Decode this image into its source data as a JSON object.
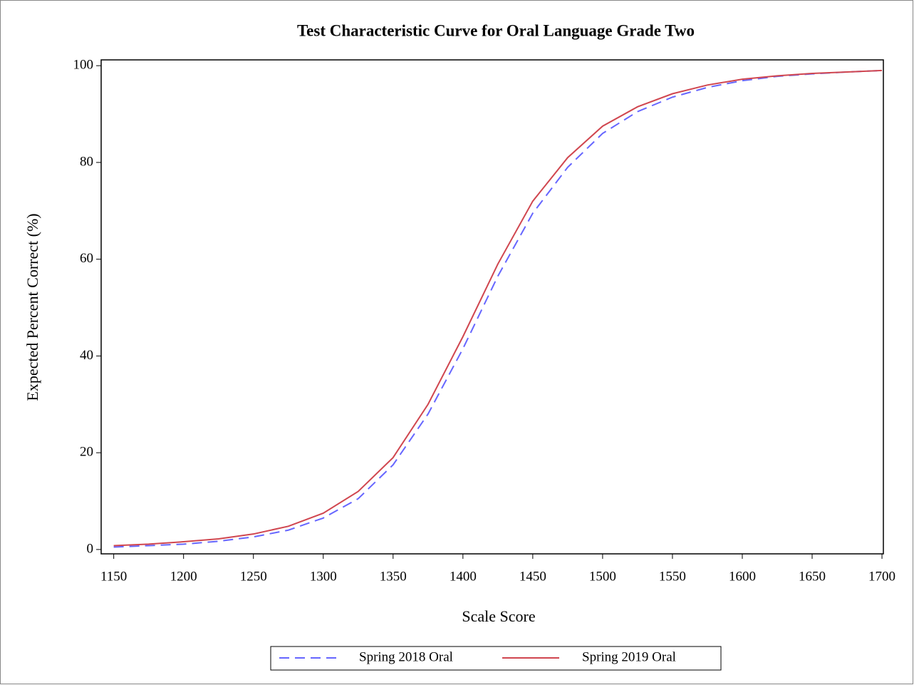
{
  "chart_data": {
    "type": "line",
    "title": "Test Characteristic Curve for Oral Language Grade Two",
    "x_label": "Scale Score",
    "y_label": "Expected Percent Correct (%)",
    "x": [
      1150,
      1175,
      1200,
      1225,
      1250,
      1275,
      1300,
      1325,
      1350,
      1375,
      1400,
      1425,
      1450,
      1475,
      1500,
      1525,
      1550,
      1575,
      1600,
      1625,
      1650,
      1675,
      1700
    ],
    "series": [
      {
        "name": "Spring 2018 Oral",
        "color": "#6666ff",
        "dashed": true,
        "values": [
          0.5,
          0.8,
          1.1,
          1.7,
          2.6,
          4,
          6.5,
          10.5,
          17.5,
          28,
          41.5,
          56.5,
          69.5,
          79,
          86,
          90.5,
          93.5,
          95.5,
          96.9,
          97.8,
          98.3,
          98.7,
          99
        ]
      },
      {
        "name": "Spring 2019 Oral",
        "color": "#d0464f",
        "dashed": false,
        "values": [
          0.8,
          1.1,
          1.6,
          2.2,
          3.2,
          4.8,
          7.5,
          12,
          19,
          30,
          44,
          59,
          72,
          81,
          87.5,
          91.5,
          94.2,
          96,
          97.2,
          97.9,
          98.4,
          98.7,
          99
        ]
      }
    ],
    "xlim": [
      1141,
      1701
    ],
    "xticks": [
      1150,
      1200,
      1250,
      1300,
      1350,
      1400,
      1450,
      1500,
      1550,
      1600,
      1650,
      1700
    ],
    "ylim": [
      -0.9,
      101.2
    ],
    "yticks": [
      0,
      20,
      40,
      60,
      80,
      100
    ],
    "legend": "bottom"
  }
}
